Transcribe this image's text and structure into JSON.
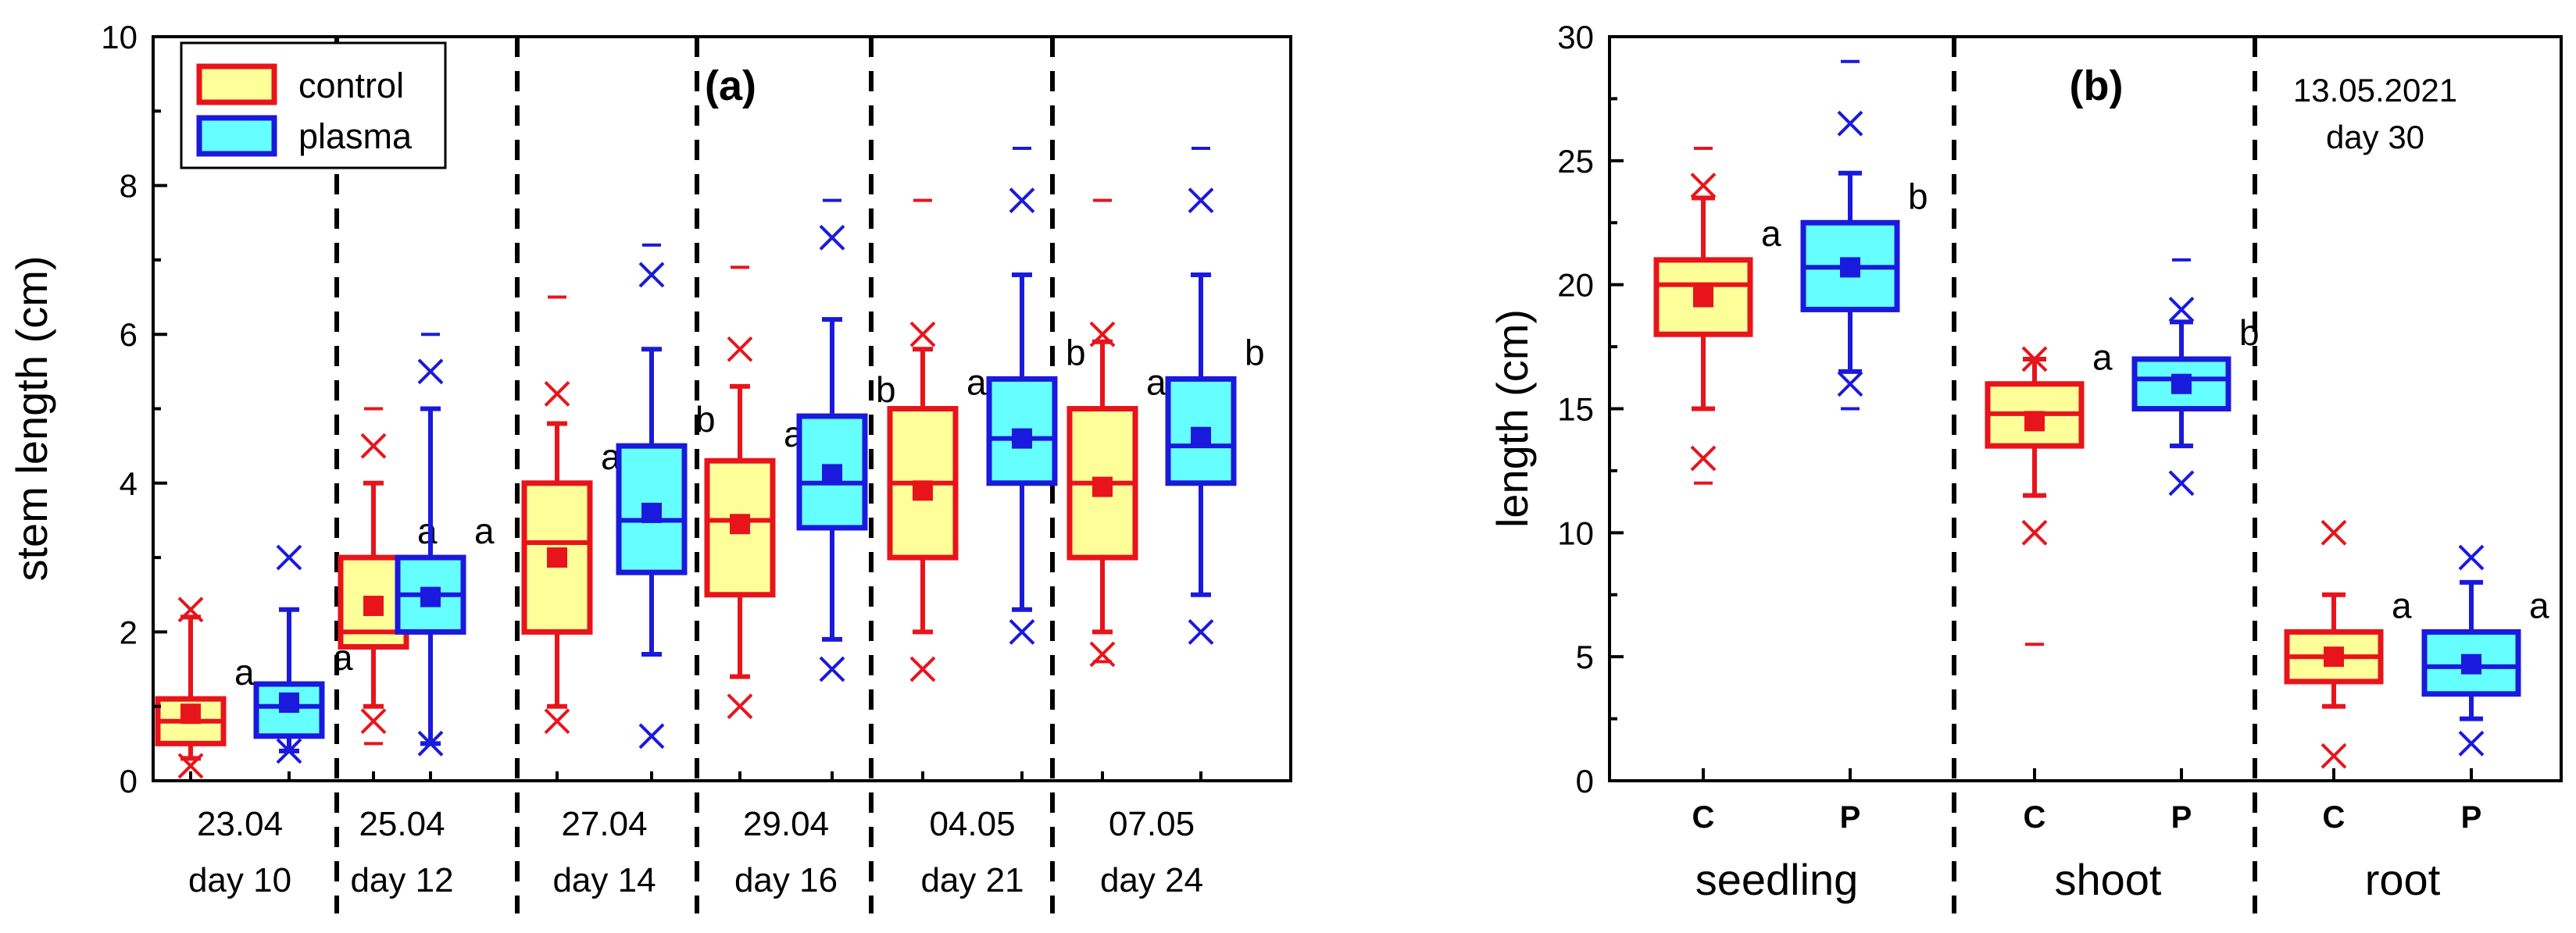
{
  "colors": {
    "control_stroke": "#e8141c",
    "control_fill": "#ffff99",
    "plasma_stroke": "#1a1adc",
    "plasma_fill": "#66ffff",
    "axis": "#000000"
  },
  "chart_data": [
    {
      "id": "a",
      "type": "box",
      "panel_label": "(a)",
      "ylabel": "stem length (cm)",
      "ylim": [
        0,
        10
      ],
      "yticks": [
        "0",
        "2",
        "4",
        "6",
        "8",
        "10"
      ],
      "legend": {
        "position": "top-left",
        "entries": [
          "control",
          "plasma"
        ]
      },
      "groups": [
        {
          "date": "23.04",
          "day": "day 10"
        },
        {
          "date": "25.04",
          "day": "day 12"
        },
        {
          "date": "27.04",
          "day": "day 14"
        },
        {
          "date": "29.04",
          "day": "day 16"
        },
        {
          "date": "04.05",
          "day": "day 21"
        },
        {
          "date": "07.05",
          "day": "day 24"
        }
      ],
      "boxes": [
        {
          "group": 0,
          "series": "control",
          "q1": 0.5,
          "median": 0.8,
          "q3": 1.1,
          "whisker_low": 0.3,
          "whisker_high": 2.2,
          "mean": 0.9,
          "x_marks": [
            2.3,
            0.2
          ],
          "dash_marks": [],
          "letter": "a"
        },
        {
          "group": 0,
          "series": "plasma",
          "q1": 0.6,
          "median": 1.0,
          "q3": 1.3,
          "whisker_low": 0.4,
          "whisker_high": 2.3,
          "mean": 1.05,
          "x_marks": [
            3.0,
            0.4
          ],
          "dash_marks": [],
          "letter": "a"
        },
        {
          "group": 1,
          "series": "control",
          "q1": 1.8,
          "median": 2.0,
          "q3": 3.0,
          "whisker_low": 1.0,
          "whisker_high": 4.0,
          "mean": 2.35,
          "x_marks": [
            4.5,
            0.8
          ],
          "dash_marks": [
            5.0,
            0.5
          ],
          "letter": "a"
        },
        {
          "group": 1,
          "series": "plasma",
          "q1": 2.0,
          "median": 2.5,
          "q3": 3.0,
          "whisker_low": 0.5,
          "whisker_high": 5.0,
          "mean": 2.47,
          "x_marks": [
            5.5,
            0.5
          ],
          "dash_marks": [
            6.0
          ],
          "letter": "a"
        },
        {
          "group": 2,
          "series": "control",
          "q1": 2.0,
          "median": 3.2,
          "q3": 4.0,
          "whisker_low": 1.0,
          "whisker_high": 4.8,
          "mean": 3.0,
          "x_marks": [
            5.2,
            0.8
          ],
          "dash_marks": [
            6.5
          ],
          "letter": "a"
        },
        {
          "group": 2,
          "series": "plasma",
          "q1": 2.8,
          "median": 3.5,
          "q3": 4.5,
          "whisker_low": 1.7,
          "whisker_high": 5.8,
          "mean": 3.6,
          "x_marks": [
            6.8,
            0.6
          ],
          "dash_marks": [
            7.2
          ],
          "letter": "b"
        },
        {
          "group": 3,
          "series": "control",
          "q1": 2.5,
          "median": 3.5,
          "q3": 4.3,
          "whisker_low": 1.4,
          "whisker_high": 5.3,
          "mean": 3.45,
          "x_marks": [
            5.8,
            1.0
          ],
          "dash_marks": [
            6.9
          ],
          "letter": "a"
        },
        {
          "group": 3,
          "series": "plasma",
          "q1": 3.4,
          "median": 4.0,
          "q3": 4.9,
          "whisker_low": 1.9,
          "whisker_high": 6.2,
          "mean": 4.12,
          "x_marks": [
            7.3,
            1.5
          ],
          "dash_marks": [
            7.8
          ],
          "letter": "b"
        },
        {
          "group": 4,
          "series": "control",
          "q1": 3.0,
          "median": 4.0,
          "q3": 5.0,
          "whisker_low": 2.0,
          "whisker_high": 5.8,
          "mean": 3.9,
          "x_marks": [
            6.0,
            1.5
          ],
          "dash_marks": [
            7.8
          ],
          "letter": "a"
        },
        {
          "group": 4,
          "series": "plasma",
          "q1": 4.0,
          "median": 4.6,
          "q3": 5.4,
          "whisker_low": 2.3,
          "whisker_high": 6.8,
          "mean": 4.6,
          "x_marks": [
            7.8,
            2.0
          ],
          "dash_marks": [
            8.5
          ],
          "letter": "b"
        },
        {
          "group": 5,
          "series": "control",
          "q1": 3.0,
          "median": 4.0,
          "q3": 5.0,
          "whisker_low": 2.0,
          "whisker_high": 5.9,
          "mean": 3.95,
          "x_marks": [
            6.0,
            1.7
          ],
          "dash_marks": [
            7.8,
            1.6
          ],
          "letter": "a"
        },
        {
          "group": 5,
          "series": "plasma",
          "q1": 4.0,
          "median": 4.5,
          "q3": 5.4,
          "whisker_low": 2.5,
          "whisker_high": 6.8,
          "mean": 4.62,
          "x_marks": [
            7.8,
            2.0
          ],
          "dash_marks": [
            8.5
          ],
          "letter": "b"
        }
      ]
    },
    {
      "id": "b",
      "type": "box",
      "panel_label": "(b)",
      "annotation": [
        "13.05.2021",
        "day 30"
      ],
      "ylabel": "length (cm)",
      "ylim": [
        0,
        30
      ],
      "yticks": [
        "0",
        "5",
        "10",
        "15",
        "20",
        "25",
        "30"
      ],
      "groups": [
        {
          "name": "seedling",
          "ticks": [
            "C",
            "P"
          ]
        },
        {
          "name": "shoot",
          "ticks": [
            "C",
            "P"
          ]
        },
        {
          "name": "root",
          "ticks": [
            "C",
            "P"
          ]
        }
      ],
      "boxes": [
        {
          "group": 0,
          "series": "control",
          "q1": 18.0,
          "median": 20.0,
          "q3": 21.0,
          "whisker_low": 15.0,
          "whisker_high": 23.5,
          "mean": 19.5,
          "x_marks": [
            24.0,
            13.0
          ],
          "dash_marks": [
            25.5,
            12.0
          ],
          "letter": "a"
        },
        {
          "group": 0,
          "series": "plasma",
          "q1": 19.0,
          "median": 20.7,
          "q3": 22.5,
          "whisker_low": 16.5,
          "whisker_high": 24.5,
          "mean": 20.7,
          "x_marks": [
            26.5,
            16.0
          ],
          "dash_marks": [
            29.0,
            15.0
          ],
          "letter": "b"
        },
        {
          "group": 1,
          "series": "control",
          "q1": 13.5,
          "median": 14.8,
          "q3": 16.0,
          "whisker_low": 11.5,
          "whisker_high": 17.0,
          "mean": 14.5,
          "x_marks": [
            17.0,
            10.0
          ],
          "dash_marks": [
            5.5
          ],
          "letter": "a"
        },
        {
          "group": 1,
          "series": "plasma",
          "q1": 15.0,
          "median": 16.2,
          "q3": 17.0,
          "whisker_low": 13.5,
          "whisker_high": 18.5,
          "mean": 16.0,
          "x_marks": [
            19.0,
            12.0
          ],
          "dash_marks": [
            21.0
          ],
          "letter": "b"
        },
        {
          "group": 2,
          "series": "control",
          "q1": 4.0,
          "median": 5.0,
          "q3": 6.0,
          "whisker_low": 3.0,
          "whisker_high": 7.5,
          "mean": 5.0,
          "x_marks": [
            10.0,
            1.0
          ],
          "dash_marks": [],
          "letter": "a"
        },
        {
          "group": 2,
          "series": "plasma",
          "q1": 3.5,
          "median": 4.6,
          "q3": 6.0,
          "whisker_low": 2.5,
          "whisker_high": 8.0,
          "mean": 4.7,
          "x_marks": [
            9.0,
            1.5
          ],
          "dash_marks": [],
          "letter": "a"
        }
      ]
    }
  ]
}
